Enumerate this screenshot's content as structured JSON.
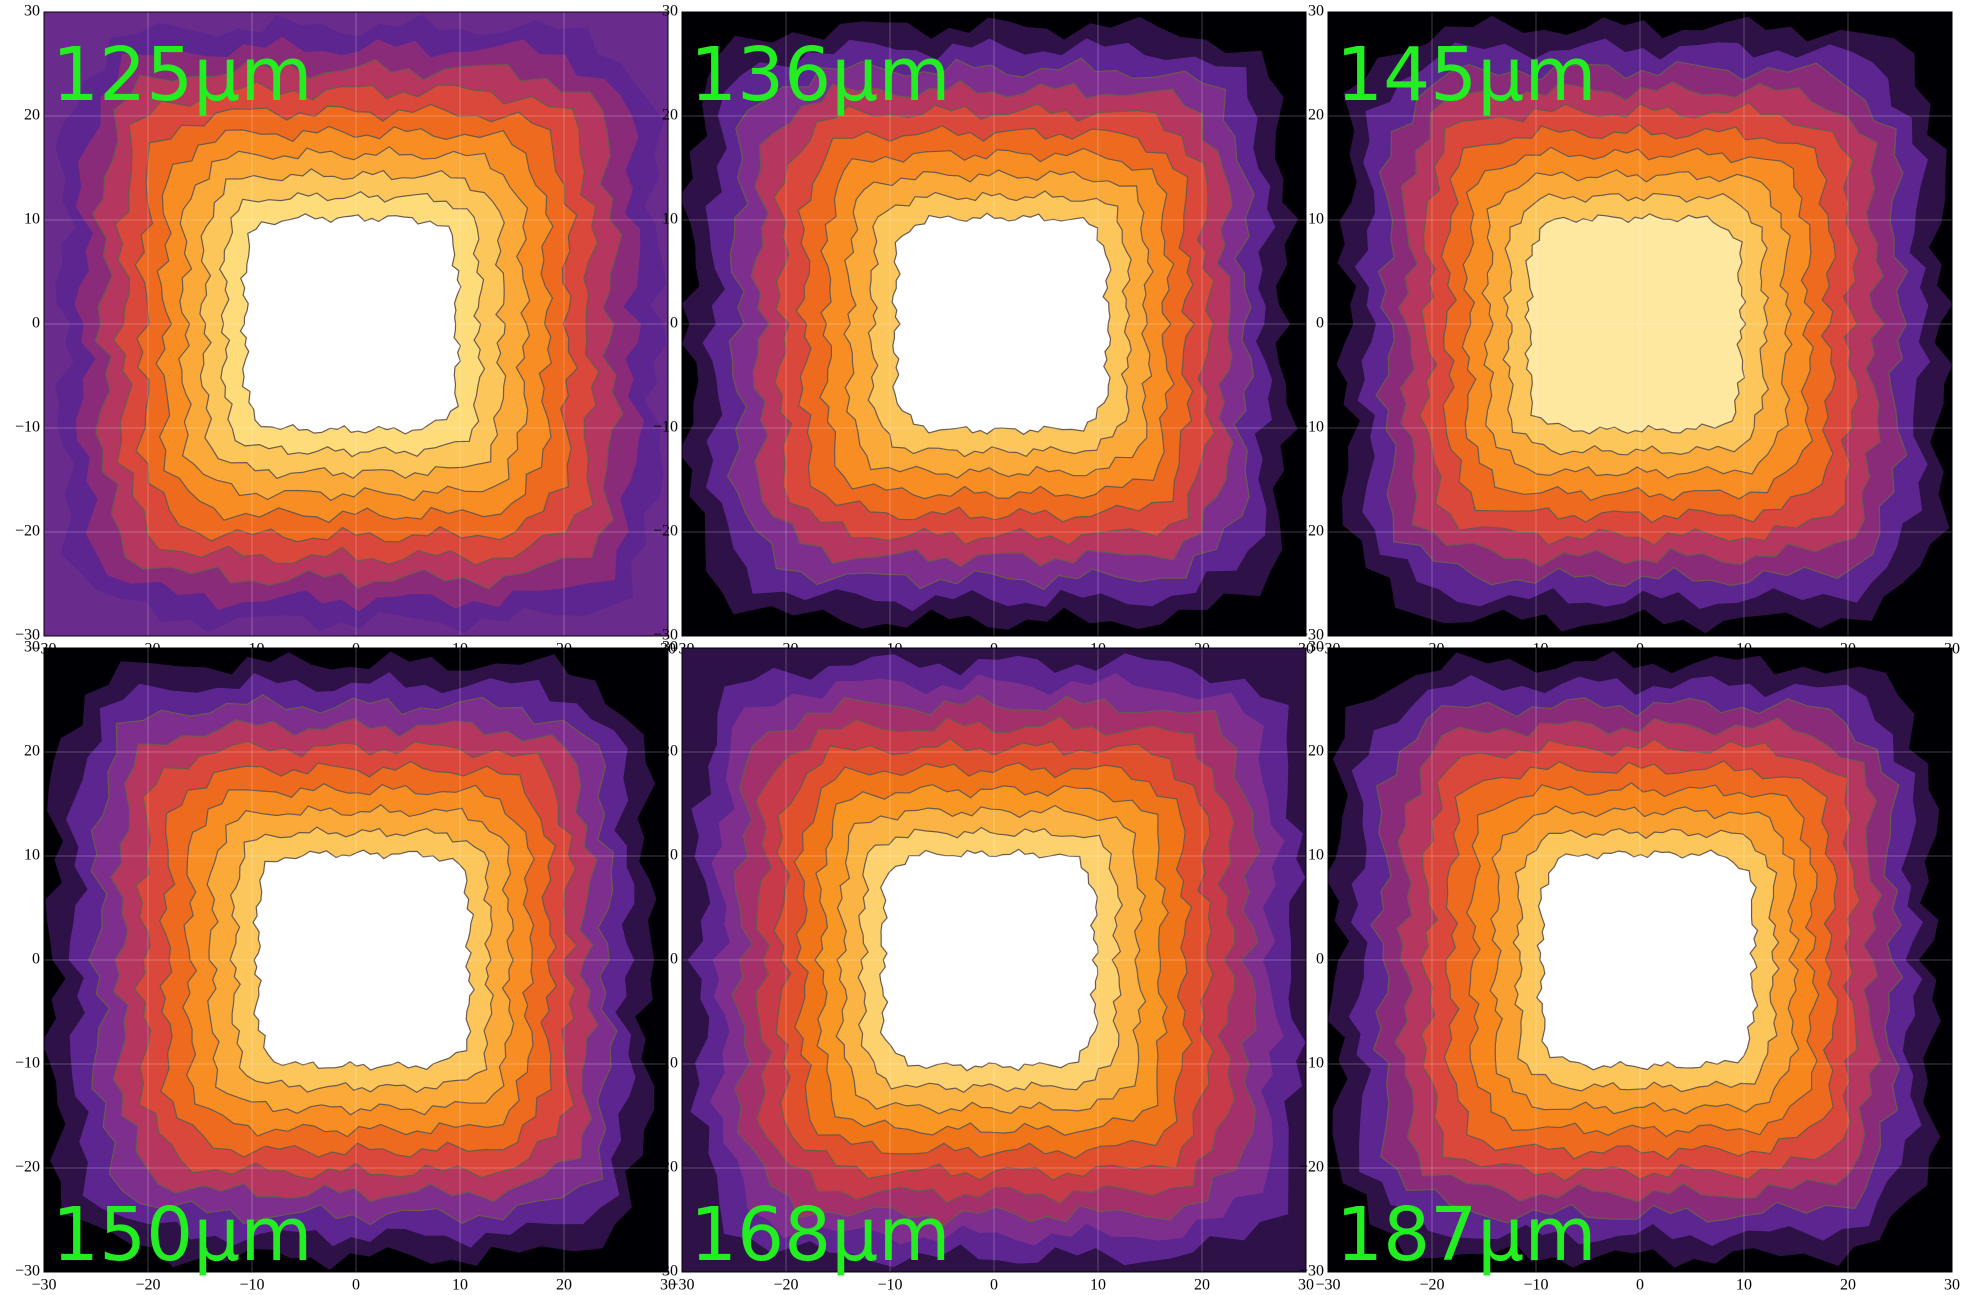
{
  "chart_data": [
    {
      "type": "contour",
      "title": "125µm",
      "xlim": [
        -30,
        30
      ],
      "ylim": [
        -30,
        30
      ],
      "xticks": [
        {
          "value": -30,
          "label": "−30"
        },
        {
          "value": -20,
          "label": "−20"
        },
        {
          "value": -10,
          "label": "−10"
        },
        0,
        10,
        20,
        30
      ],
      "yticks": [
        {
          "value": -30,
          "label": "−30"
        },
        {
          "value": -20,
          "label": "−20"
        },
        {
          "value": -10,
          "label": "−10"
        },
        0,
        10,
        20,
        30
      ],
      "grid": true,
      "colors": [
        "#6a2c8c",
        "#5c2590",
        "#8a2b7a",
        "#b5365e",
        "#d9483a",
        "#ee6a1f",
        "#f88d23",
        "#fbaa3a",
        "#fcc65a",
        "#fedc7a",
        "#ffffff"
      ]
    },
    {
      "type": "contour",
      "title": "136µm",
      "xlim": [
        -30,
        30
      ],
      "ylim": [
        -30,
        30
      ],
      "xticks": [
        {
          "value": -30,
          "label": "−30"
        },
        {
          "value": -20,
          "label": "−20"
        },
        {
          "value": -10,
          "label": "−10"
        },
        0,
        10,
        20,
        30
      ],
      "yticks": [
        {
          "value": -30,
          "label": "−30"
        },
        {
          "value": -20,
          "label": "−20"
        },
        {
          "value": -10,
          "label": "−10"
        },
        0,
        10,
        20,
        30
      ],
      "grid": true,
      "colors": [
        "#000004",
        "#2d1147",
        "#5c2590",
        "#7e2f8e",
        "#b5365e",
        "#d9483a",
        "#ee6a1f",
        "#f88d23",
        "#fbaa3a",
        "#fcc65a",
        "#ffffff"
      ]
    },
    {
      "type": "contour",
      "title": "145µm",
      "xlim": [
        -30,
        30
      ],
      "ylim": [
        -30,
        30
      ],
      "xticks": [
        {
          "value": -30,
          "label": "−30"
        },
        {
          "value": -20,
          "label": "−20"
        },
        {
          "value": -10,
          "label": "−10"
        },
        0,
        10,
        20,
        30
      ],
      "yticks": [
        {
          "value": -30,
          "label": "−30"
        },
        {
          "value": -20,
          "label": "−20"
        },
        {
          "value": -10,
          "label": "−10"
        },
        0,
        10,
        20,
        30
      ],
      "grid": true,
      "colors": [
        "#000004",
        "#2d1147",
        "#5c2590",
        "#8a2b7a",
        "#b5365e",
        "#d9483a",
        "#ee6a1f",
        "#f88d23",
        "#fbaa3a",
        "#fcc65a",
        "#fee8a0"
      ]
    },
    {
      "type": "contour",
      "title": "150µm",
      "xlim": [
        -30,
        30
      ],
      "ylim": [
        -30,
        30
      ],
      "xticks": [
        {
          "value": -30,
          "label": "−30"
        },
        {
          "value": -20,
          "label": "−20"
        },
        {
          "value": -10,
          "label": "−10"
        },
        0,
        10,
        20,
        30
      ],
      "yticks": [
        {
          "value": -30,
          "label": "−30"
        },
        {
          "value": -20,
          "label": "−20"
        },
        {
          "value": -10,
          "label": "−10"
        },
        0,
        10,
        20,
        30
      ],
      "grid": true,
      "colors": [
        "#000004",
        "#2d1147",
        "#5c2590",
        "#7e2f8e",
        "#b5365e",
        "#d9483a",
        "#ee6a1f",
        "#f88d23",
        "#fbaa3a",
        "#fcc65a",
        "#ffffff"
      ]
    },
    {
      "type": "contour",
      "title": "168µm",
      "xlim": [
        -30,
        30
      ],
      "ylim": [
        -30,
        30
      ],
      "xticks": [
        {
          "value": -30,
          "label": "−30"
        },
        {
          "value": -20,
          "label": "−20"
        },
        {
          "value": -10,
          "label": "−10"
        },
        0,
        10,
        20,
        30
      ],
      "yticks": [
        {
          "value": -30,
          "label": "−30"
        },
        {
          "value": -20,
          "label": "−20"
        },
        {
          "value": -10,
          "label": "−10"
        },
        0,
        10,
        20,
        30
      ],
      "grid": true,
      "colors": [
        "#2d1147",
        "#5c2590",
        "#7e2f8e",
        "#a3306a",
        "#c73a4a",
        "#e0502d",
        "#f07418",
        "#f99725",
        "#fbb443",
        "#fdd26e",
        "#ffffff"
      ]
    },
    {
      "type": "contour",
      "title": "187µm",
      "xlim": [
        -30,
        30
      ],
      "ylim": [
        -30,
        30
      ],
      "xticks": [
        {
          "value": -30,
          "label": "−30"
        },
        {
          "value": -20,
          "label": "−20"
        },
        {
          "value": -10,
          "label": "−10"
        },
        0,
        10,
        20,
        30
      ],
      "yticks": [
        {
          "value": -30,
          "label": "−30"
        },
        {
          "value": -20,
          "label": "−20"
        },
        {
          "value": -10,
          "label": "−10"
        },
        0,
        10,
        20,
        30
      ],
      "grid": true,
      "colors": [
        "#000004",
        "#2d1147",
        "#5c2590",
        "#8a2b7a",
        "#b5365e",
        "#d9483a",
        "#ee6a1f",
        "#f7861d",
        "#f9a030",
        "#fcc65a",
        "#ffffff"
      ]
    }
  ]
}
